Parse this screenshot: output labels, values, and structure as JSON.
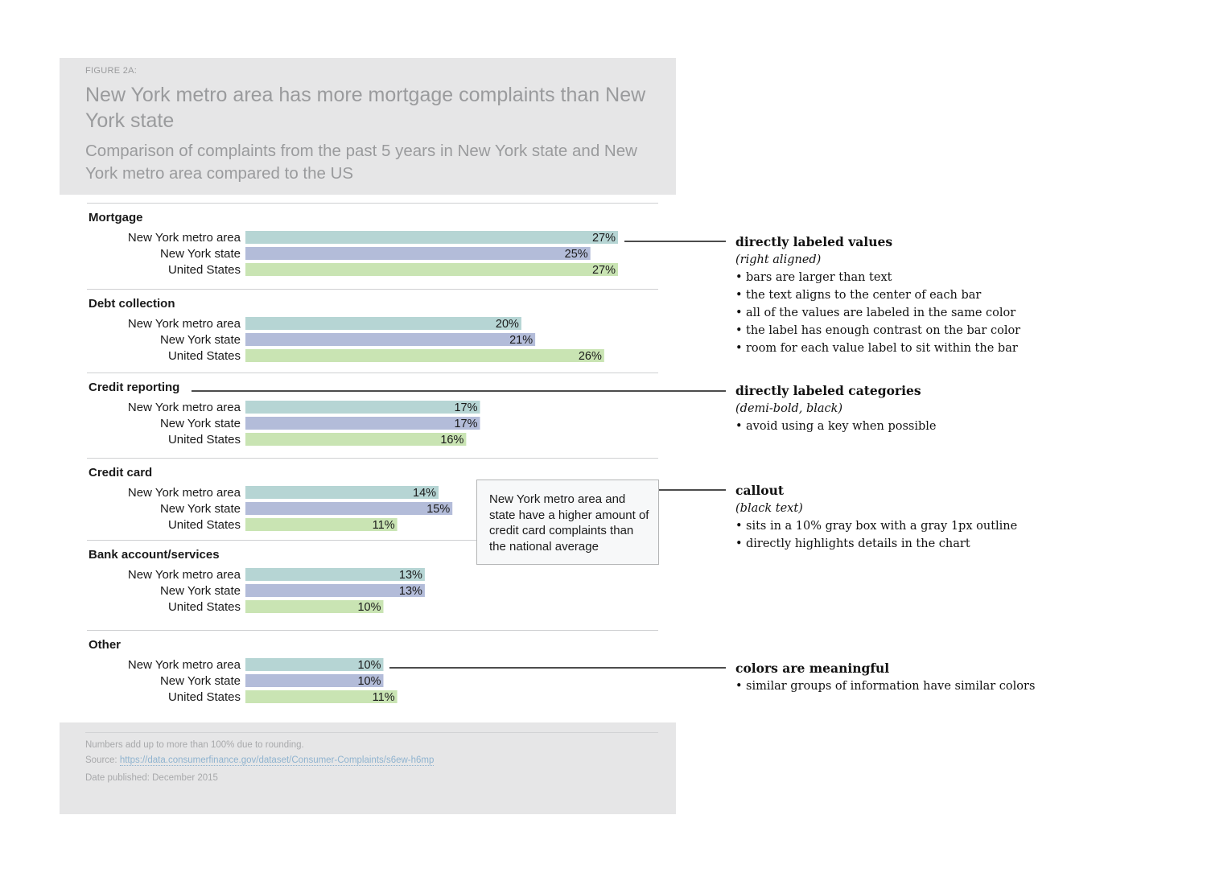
{
  "header": {
    "figure_label": "FIGURE 2A:",
    "title": "New York metro area has more mortgage complaints than New York state",
    "subtitle": "Comparison of complaints from the past 5 years in New York state and New York metro area compared to the US"
  },
  "colors": {
    "metro": "#b6d5d4",
    "state": "#b3bcd9",
    "us": "#c9e4b3",
    "text": "#1a1a1a",
    "rule": "#cfd0d2",
    "header_bg": "#e6e6e7"
  },
  "chart_data": {
    "type": "bar",
    "orientation": "horizontal",
    "title": "New York metro area has more mortgage complaints than New York state",
    "subtitle": "Comparison of complaints from the past 5 years in New York state and New York metro area compared to the US",
    "series_names": [
      "New York metro area",
      "New York state",
      "United States"
    ],
    "value_suffix": "%",
    "xlim": [
      0,
      27
    ],
    "grid": false,
    "legend": "none",
    "groups": [
      {
        "category": "Mortgage",
        "values": [
          27,
          25,
          27
        ]
      },
      {
        "category": "Debt collection",
        "values": [
          20,
          21,
          26
        ]
      },
      {
        "category": "Credit reporting",
        "values": [
          17,
          17,
          16
        ]
      },
      {
        "category": "Credit card",
        "values": [
          14,
          15,
          11
        ]
      },
      {
        "category": "Bank account/services",
        "values": [
          13,
          13,
          10
        ]
      },
      {
        "category": "Other",
        "values": [
          10,
          10,
          11
        ]
      }
    ]
  },
  "callout": {
    "text": "New York metro area and state have a higher amount of credit card complaints than the national average"
  },
  "footer": {
    "note": "Numbers add up to more than 100% due to rounding.",
    "source_label": "Source:",
    "source_link": "https://data.consumerfinance.gov/dataset/Consumer-Complaints/s6ew-h6mp",
    "date_label": "Date published:",
    "date_value": "December 2015"
  },
  "annotations": [
    {
      "title": "directly labeled values",
      "subtitle": "(right aligned)",
      "bullets": [
        "bars are larger than text",
        "the text aligns to the center of each bar",
        "all of the values are labeled in the same color",
        "the label has enough contrast on the bar color",
        "room for each value label to sit within the bar"
      ]
    },
    {
      "title": "directly labeled categories",
      "subtitle": "(demi-bold, black)",
      "bullets": [
        "avoid using a key when possible"
      ]
    },
    {
      "title": "callout",
      "subtitle": "(black text)",
      "bullets": [
        "sits in a 10% gray box with a gray 1px outline",
        "directly highlights details in the chart"
      ]
    },
    {
      "title": "colors are meaningful",
      "subtitle": "",
      "bullets": [
        "similar groups of information have similar colors"
      ]
    }
  ]
}
